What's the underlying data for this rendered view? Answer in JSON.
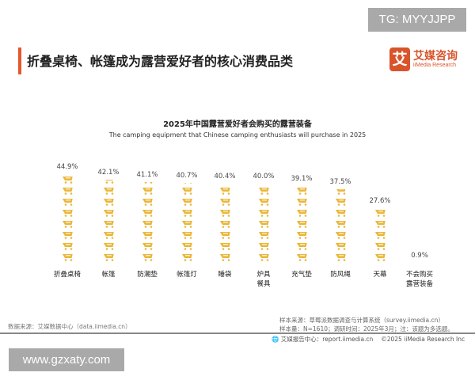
{
  "watermark_top": "TG: MYYJJPP",
  "page_title": "折叠桌椅、帐篷成为露营爱好者的核心消费品类",
  "logo": {
    "mark": "艾",
    "cn": "艾媒咨询",
    "en": "iiMedia Research"
  },
  "chart_data": {
    "type": "bar",
    "style": "pictogram",
    "icon": "shopping-cart-icon",
    "title": "2025年中国露营爱好者会购买的露营装备",
    "subtitle": "The camping equipment that Chinese camping enthusiasts will purchase in 2025",
    "categories": [
      "折叠桌椅",
      "帐篷",
      "防潮垫",
      "帐篷灯",
      "睡袋",
      "炉具\n餐具",
      "充气垫",
      "防风绳",
      "天幕",
      "不会购买\n露营装备"
    ],
    "values": [
      44.9,
      42.1,
      41.1,
      40.7,
      40.4,
      40.0,
      39.1,
      37.5,
      27.6,
      0.9
    ],
    "labels": [
      "44.9%",
      "42.1%",
      "41.1%",
      "40.7%",
      "40.4%",
      "40.0%",
      "39.1%",
      "37.5%",
      "27.6%",
      "0.9%"
    ],
    "color": "#eab73a",
    "grid": false
  },
  "footer": {
    "data_source": "数据来源：艾媒数据中心（data.iimedia.cn）",
    "sample_source": "样本来源：草莓派数据调查与计算系统（survey.iimedia.cn）",
    "sample_info": "样本量：N=1610；调研时间：2025年3月；注：该题为多选题。",
    "report": "艾媒报告中心：report.iimedia.cn　 ©2025  iiMedia Research  Inc"
  },
  "watermark_bottom": "www.gzxaty.com"
}
